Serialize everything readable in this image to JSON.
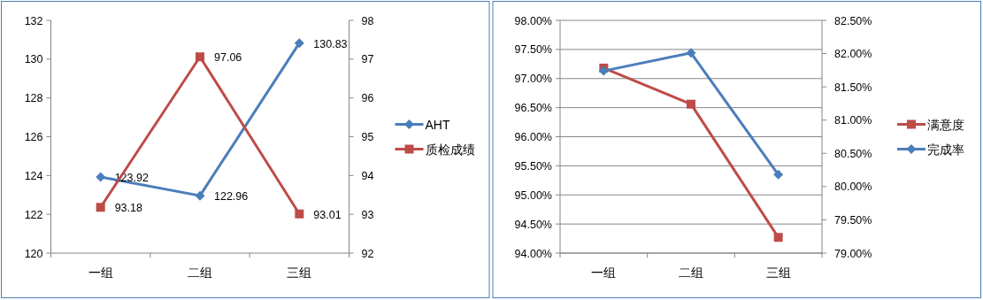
{
  "chart_data": [
    {
      "type": "line",
      "categories": [
        "一组",
        "二组",
        "三组"
      ],
      "series": [
        {
          "name": "AHT",
          "color": "#4a7ebb",
          "marker": "diamond",
          "values": [
            123.92,
            122.96,
            130.83
          ]
        },
        {
          "name": "质检成绩",
          "color": "#be4b48",
          "marker": "square",
          "axis": "y2",
          "values": [
            93.18,
            97.06,
            93.01
          ]
        }
      ],
      "ylim": [
        120,
        132
      ],
      "yticks": [
        120,
        122,
        124,
        126,
        128,
        130,
        132
      ],
      "y2lim": [
        92,
        98
      ],
      "y2ticks": [
        92,
        93,
        94,
        95,
        96,
        97,
        98
      ],
      "data_labels": true,
      "legend": "right"
    },
    {
      "type": "line",
      "categories": [
        "一组",
        "二组",
        "三组"
      ],
      "series": [
        {
          "name": "满意度",
          "color": "#be4b48",
          "marker": "square",
          "values": [
            97.18,
            96.56,
            94.27
          ]
        },
        {
          "name": "完成率",
          "color": "#4a7ebb",
          "marker": "diamond",
          "axis": "y2",
          "values": [
            81.74,
            82.01,
            80.18
          ]
        }
      ],
      "ylim": [
        94,
        98
      ],
      "yticks": [
        {
          "value": 94,
          "label": "94.00%"
        },
        {
          "value": 94.5,
          "label": "94.50%"
        },
        {
          "value": 95,
          "label": "95.00%"
        },
        {
          "value": 95.5,
          "label": "95.50%"
        },
        {
          "value": 96,
          "label": "96.00%"
        },
        {
          "value": 96.5,
          "label": "96.50%"
        },
        {
          "value": 97,
          "label": "97.00%"
        },
        {
          "value": 97.5,
          "label": "97.50%"
        },
        {
          "value": 98,
          "label": "98.00%"
        }
      ],
      "y2lim": [
        79,
        82.5
      ],
      "y2ticks": [
        {
          "value": 79,
          "label": "79.00%"
        },
        {
          "value": 79.5,
          "label": "79.50%"
        },
        {
          "value": 80,
          "label": "80.00%"
        },
        {
          "value": 80.5,
          "label": "80.50%"
        },
        {
          "value": 81,
          "label": "81.00%"
        },
        {
          "value": 81.5,
          "label": "81.50%"
        },
        {
          "value": 82,
          "label": "82.00%"
        },
        {
          "value": 82.5,
          "label": "82.50%"
        }
      ],
      "grid": "y",
      "legend": "right"
    }
  ]
}
